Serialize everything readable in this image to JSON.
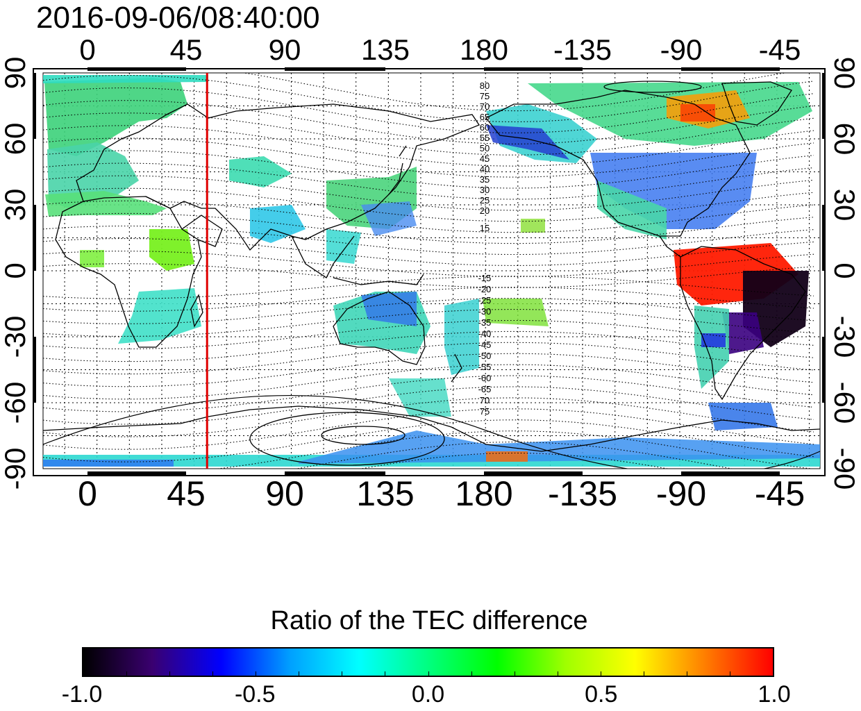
{
  "timestamp": "2016-09-06/08:40:00",
  "map": {
    "top_lon_ticks": [
      "0",
      "45",
      "90",
      "135",
      "180",
      "-135",
      "-90",
      "-45"
    ],
    "bottom_lon_ticks": [
      "0",
      "45",
      "90",
      "135",
      "180",
      "-135",
      "-90",
      "-45"
    ],
    "left_lat_ticks": [
      "90",
      "60",
      "30",
      "0",
      "-30",
      "-60",
      "-90"
    ],
    "right_lat_ticks": [
      "90",
      "60",
      "30",
      "0",
      "-30",
      "-60",
      "-90"
    ],
    "marker_longitude": 51,
    "marker_color": "#e00000",
    "magnetic_contour_labels_north": [
      "80",
      "75",
      "70",
      "65",
      "60",
      "55",
      "50",
      "45",
      "40",
      "35",
      "30",
      "25",
      "20",
      "15"
    ],
    "magnetic_contour_labels_south": [
      "-15",
      "-20",
      "-25",
      "-30",
      "-35",
      "-40",
      "-45",
      "-50",
      "-55",
      "-60",
      "-65",
      "70",
      "75"
    ]
  },
  "colorbar": {
    "title": "Ratio of the TEC difference",
    "tick_labels": [
      "-1.0",
      "-0.5",
      "0.0",
      "0.5",
      "1.0"
    ],
    "range": [
      -1.0,
      1.0
    ],
    "colors": [
      "#000000",
      "#3a0070",
      "#0000ff",
      "#00a0ff",
      "#00ffff",
      "#00ff80",
      "#00ff00",
      "#a0ff00",
      "#ffff00",
      "#ff8000",
      "#ff0000"
    ]
  }
}
